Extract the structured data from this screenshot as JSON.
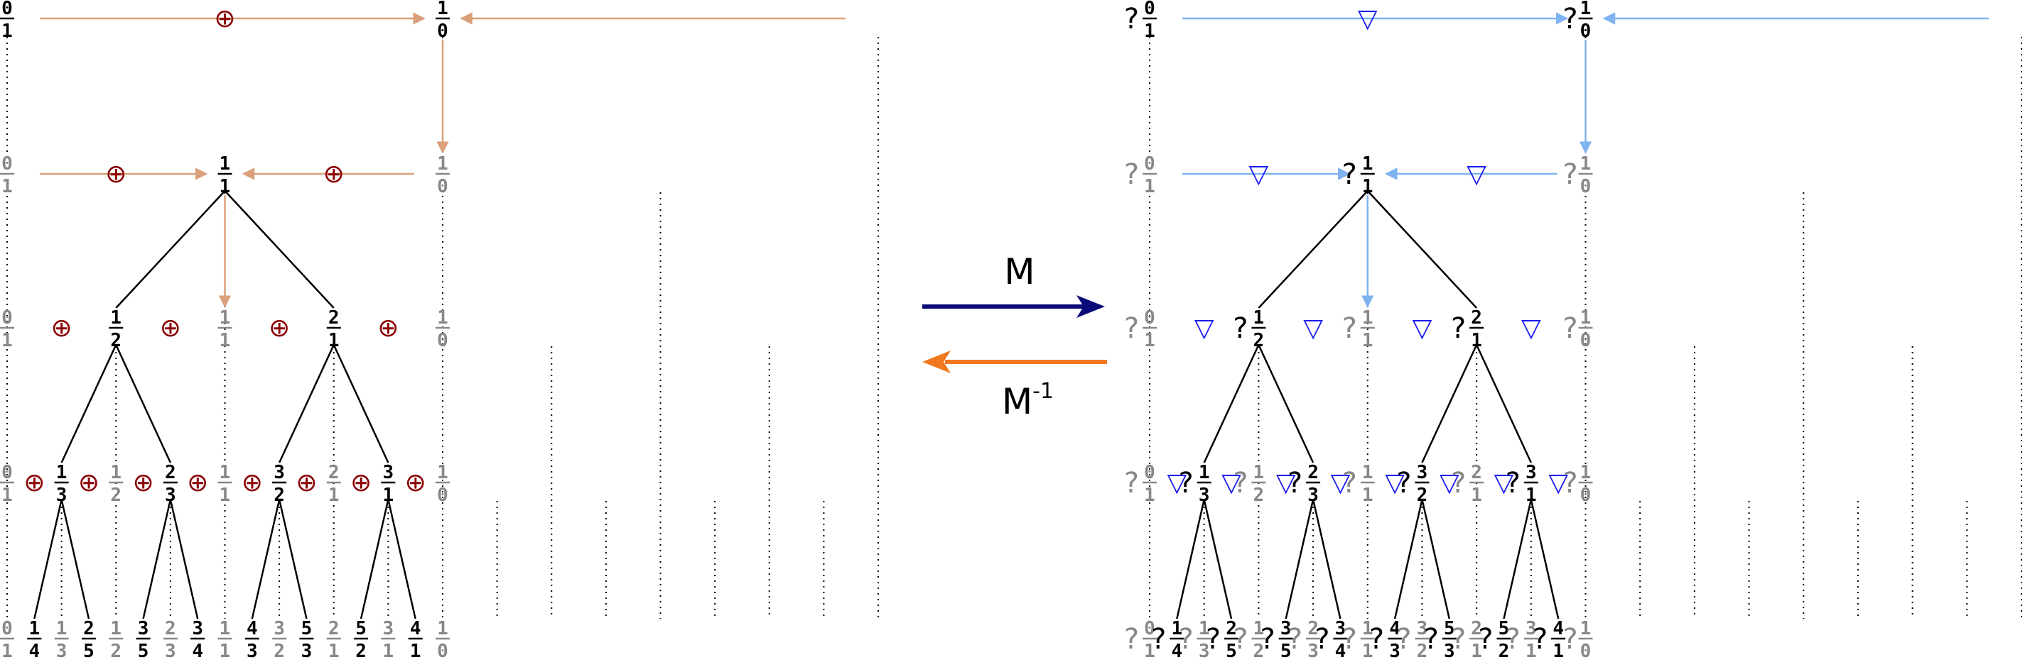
{
  "colors": {
    "tree_node": "#000000",
    "ghost_node": "#888888",
    "edge": "#000000",
    "dotted": "#000000",
    "left_arrow": "#d9a07a",
    "left_symbol": "#8b0000",
    "right_arrow": "#7fb2f0",
    "right_symbol": "#1a1af0",
    "forward_arrow": "#0a0a78",
    "backward_arrow": "#f07820"
  },
  "middle": {
    "forward_label": "M",
    "backward_label": "M",
    "backward_superscript": "-1"
  },
  "left_panel": {
    "symbol_icon": "circled-plus-icon",
    "symbol_char": "⊕",
    "levels": [
      [
        "0/1",
        "1/0"
      ],
      [
        "0/1",
        "1/1",
        "1/0"
      ],
      [
        "0/1",
        "1/2",
        "1/1",
        "2/1",
        "1/0"
      ],
      [
        "0/1",
        "1/3",
        "1/2",
        "2/3",
        "1/1",
        "3/2",
        "2/1",
        "3/1",
        "1/0"
      ],
      [
        "0/1",
        "1/4",
        "1/3",
        "2/5",
        "1/2",
        "3/5",
        "2/3",
        "3/4",
        "1/1",
        "4/3",
        "3/2",
        "5/3",
        "2/1",
        "5/2",
        "3/1",
        "4/1",
        "1/0"
      ]
    ]
  },
  "right_panel": {
    "symbol_icon": "down-triangle-icon",
    "symbol_char": "▽",
    "prefix": "?",
    "levels": [
      [
        "0/1",
        "1/0"
      ],
      [
        "0/1",
        "1/1",
        "1/0"
      ],
      [
        "0/1",
        "1/2",
        "1/1",
        "2/1",
        "1/0"
      ],
      [
        "0/1",
        "1/3",
        "1/2",
        "2/3",
        "1/1",
        "3/2",
        "2/1",
        "3/1",
        "1/0"
      ],
      [
        "0/1",
        "1/4",
        "1/3",
        "2/5",
        "1/2",
        "3/5",
        "2/3",
        "3/4",
        "1/1",
        "4/3",
        "3/2",
        "5/3",
        "2/1",
        "5/2",
        "3/1",
        "4/1",
        "1/0"
      ]
    ]
  }
}
